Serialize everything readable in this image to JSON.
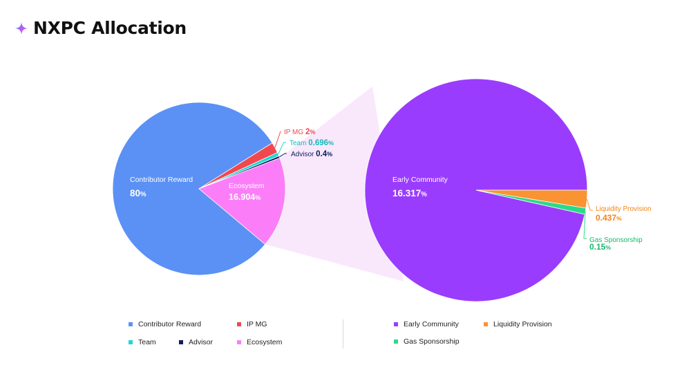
{
  "header": {
    "title": "NXPC Allocation",
    "icon": "sparkle-icon",
    "icon_colors": [
      "#5b8ef8",
      "#b45cf5",
      "#f26ad9"
    ]
  },
  "chart_data": [
    {
      "type": "pie",
      "name": "main",
      "slices": [
        {
          "label": "Contributor Reward",
          "value_text": "80",
          "value": 80,
          "color": "#5b91f5",
          "label_color": "#ffffff"
        },
        {
          "label": "IP MG",
          "value_text": "2",
          "value": 2,
          "color": "#f2474f",
          "label_color": "#f2474f"
        },
        {
          "label": "Team",
          "value_text": "0.696",
          "value": 0.696,
          "color": "#22d6d6",
          "label_color": "#16b9b9"
        },
        {
          "label": "Advisor",
          "value_text": "0.4",
          "value": 0.4,
          "color": "#0c1e5b",
          "label_color": "#0c1e5b"
        },
        {
          "label": "Ecosystem",
          "value_text": "16.904",
          "value": 16.904,
          "color": "#fb7ef8",
          "label_color": "#ffffff"
        }
      ],
      "unit": "%"
    },
    {
      "type": "pie",
      "name": "ecosystem-breakdown",
      "slices": [
        {
          "label": "Early Community",
          "value_text": "16.317",
          "value": 16.317,
          "color": "#9a3cfd",
          "label_color": "#ffffff"
        },
        {
          "label": "Liquidity Provision",
          "value_text": "0.437",
          "value": 0.437,
          "color": "#fa9331",
          "label_color": "#f08418"
        },
        {
          "label": "Gas Sponsorship",
          "value_text": "0.15",
          "value": 0.15,
          "color": "#2bd98a",
          "label_color": "#16b86b"
        }
      ],
      "unit": "%"
    }
  ],
  "legend": {
    "left": [
      {
        "label": "Contributor Reward",
        "color": "#5b91f5"
      },
      {
        "label": "IP MG",
        "color": "#f2474f"
      },
      {
        "label": "Team",
        "color": "#22d6d6"
      },
      {
        "label": "Advisor",
        "color": "#0c1e5b"
      },
      {
        "label": "Ecosystem",
        "color": "#fb7ef8"
      }
    ],
    "right": [
      {
        "label": "Early Community",
        "color": "#9a3cfd"
      },
      {
        "label": "Liquidity Provision",
        "color": "#fa9331"
      },
      {
        "label": "Gas Sponsorship",
        "color": "#2bd98a"
      }
    ]
  },
  "zoom_band_color": "#f9e8fb"
}
